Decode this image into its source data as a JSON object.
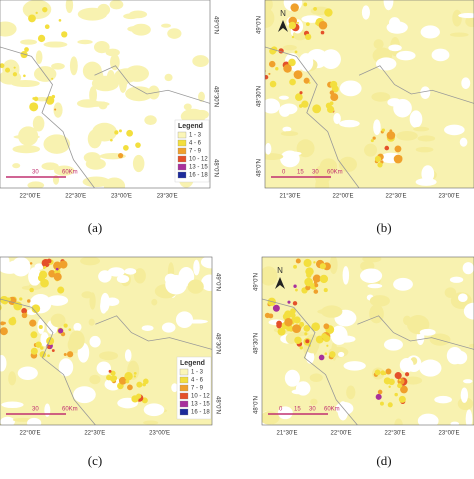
{
  "panels": [
    {
      "caption": "(a)",
      "lon_labels": [
        "22°00'E",
        "22°30'E",
        "23°00'E",
        "23°30'E"
      ],
      "lat_labels": [
        "49°0'N",
        "48°30'N",
        "48°0'N"
      ],
      "scale_labels": [
        "30",
        "60Km"
      ],
      "legend": {
        "title": "Legend",
        "items": [
          {
            "label": "1 - 3",
            "color": "#fbf6b8"
          },
          {
            "label": "4 - 6",
            "color": "#f3df3e"
          },
          {
            "label": "7 - 9",
            "color": "#f0a02c"
          },
          {
            "label": "10 - 12",
            "color": "#e4502a"
          },
          {
            "label": "13 - 15",
            "color": "#a8309c"
          },
          {
            "label": "16 - 18",
            "color": "#1c2a9a"
          }
        ]
      }
    },
    {
      "caption": "(b)",
      "north": "N",
      "lon_labels": [
        "21°30'E",
        "22°00'E",
        "22°30'E",
        "23°00'E"
      ],
      "lat_labels": [
        "49°0'N",
        "48°30'N",
        "48°0'N"
      ],
      "scale_labels": [
        "0",
        "15",
        "30",
        "60Km"
      ]
    },
    {
      "caption": "(c)",
      "lon_labels": [
        "22°00'E",
        "22°30'E",
        "23°00'E"
      ],
      "lat_labels": [
        "49°0'N",
        "48°30'N",
        "48°0'N"
      ],
      "scale_labels": [
        "30",
        "60Km"
      ],
      "legend": {
        "title": "Legend",
        "items": [
          {
            "label": "1 - 3",
            "color": "#fbf6b8"
          },
          {
            "label": "4 - 6",
            "color": "#f3df3e"
          },
          {
            "label": "7 - 9",
            "color": "#f0a02c"
          },
          {
            "label": "10 - 12",
            "color": "#e4502a"
          },
          {
            "label": "13 - 15",
            "color": "#a8309c"
          },
          {
            "label": "16 - 18",
            "color": "#1c2a9a"
          }
        ]
      }
    },
    {
      "caption": "(d)",
      "north": "N",
      "lon_labels": [
        "21°30'E",
        "22°00'E",
        "22°30'E",
        "23°00'E"
      ],
      "lat_labels": [
        "49°0'N",
        "48°30'N",
        "48°0'N"
      ],
      "scale_labels": [
        "0",
        "15",
        "30",
        "60Km"
      ]
    }
  ]
}
